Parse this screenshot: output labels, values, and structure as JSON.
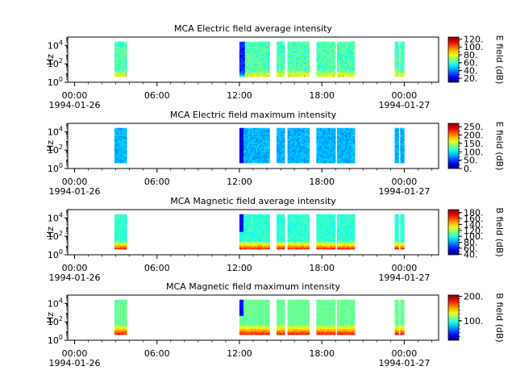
{
  "chart_data": [
    {
      "type": "heatmap",
      "title": "MCA  Electric field average intensity",
      "ylabel": "Hz",
      "colorbar_label": "E field (dB)",
      "colorbar_ticks": [
        "20.",
        "40.",
        "60.",
        "80.",
        "100.",
        "120."
      ],
      "colorbar_range": [
        10,
        125
      ],
      "colormap": "jet-like (blue-cyan-green-yellow-red)",
      "y_scale": "log",
      "y_ticks": [
        "10^0",
        "10^2",
        "10^4"
      ],
      "x_ticks": [
        {
          "time": "00:00",
          "date": "1994-01-26"
        },
        {
          "time": "06:00"
        },
        {
          "time": "12:00"
        },
        {
          "time": "18:00"
        },
        {
          "time": "00:00",
          "date": "1994-01-27"
        }
      ],
      "data_intervals_hours": [
        [
          2.9,
          3.8
        ],
        [
          12.0,
          14.2
        ],
        [
          14.7,
          15.3
        ],
        [
          15.5,
          17.1
        ],
        [
          17.6,
          19.0
        ],
        [
          19.1,
          20.4
        ],
        [
          23.3,
          23.6
        ],
        [
          23.7,
          24.0
        ]
      ],
      "frequency_range_log10": [
        0.6,
        4.4
      ]
    },
    {
      "type": "heatmap",
      "title": "MCA  Electric field maximum intensity",
      "ylabel": "Hz",
      "colorbar_label": "E field (dB)",
      "colorbar_ticks": [
        "0.",
        "50.",
        "100.",
        "150.",
        "200.",
        "250."
      ],
      "colorbar_range": [
        0,
        270
      ],
      "colormap": "jet-like (blue-cyan-green-yellow-red)",
      "y_scale": "log",
      "y_ticks": [
        "10^0",
        "10^2",
        "10^4"
      ],
      "x_ticks": [
        {
          "time": "00:00",
          "date": "1994-01-26"
        },
        {
          "time": "06:00"
        },
        {
          "time": "12:00"
        },
        {
          "time": "18:00"
        },
        {
          "time": "00:00",
          "date": "1994-01-27"
        }
      ],
      "data_intervals_hours": [
        [
          2.9,
          3.8
        ],
        [
          12.0,
          14.2
        ],
        [
          14.7,
          15.3
        ],
        [
          15.5,
          17.1
        ],
        [
          17.6,
          19.0
        ],
        [
          19.1,
          20.4
        ],
        [
          23.3,
          23.6
        ],
        [
          23.7,
          24.0
        ]
      ],
      "frequency_range_log10": [
        0.6,
        4.4
      ]
    },
    {
      "type": "heatmap",
      "title": "MCA  Magnetic field average intensity",
      "ylabel": "Hz",
      "colorbar_label": "B field (dB)",
      "colorbar_ticks": [
        "40.",
        "60.",
        "80.",
        "100.",
        "120.",
        "140.",
        "160.",
        "180."
      ],
      "colorbar_range": [
        38,
        190
      ],
      "colormap": "jet-like (blue-cyan-green-yellow-red)",
      "y_scale": "log",
      "y_ticks": [
        "10^0",
        "10^2",
        "10^4"
      ],
      "x_ticks": [
        {
          "time": "00:00",
          "date": "1994-01-26"
        },
        {
          "time": "06:00"
        },
        {
          "time": "12:00"
        },
        {
          "time": "18:00"
        },
        {
          "time": "00:00",
          "date": "1994-01-27"
        }
      ],
      "data_intervals_hours": [
        [
          2.9,
          3.8
        ],
        [
          12.0,
          14.2
        ],
        [
          14.7,
          15.3
        ],
        [
          15.5,
          17.1
        ],
        [
          17.6,
          19.0
        ],
        [
          19.1,
          20.4
        ],
        [
          23.3,
          23.6
        ],
        [
          23.7,
          24.0
        ]
      ],
      "frequency_range_log10": [
        0.6,
        4.4
      ]
    },
    {
      "type": "heatmap",
      "title": "MCA  Magnetic field maximum intensity",
      "ylabel": "Hz",
      "colorbar_label": "B field (dB)",
      "colorbar_ticks": [
        "100.",
        "200."
      ],
      "colorbar_range": [
        20,
        205
      ],
      "colormap": "jet-like (blue-cyan-green-yellow-red)",
      "y_scale": "log",
      "y_ticks": [
        "10^0",
        "10^2",
        "10^4"
      ],
      "x_ticks": [
        {
          "time": "00:00",
          "date": "1994-01-26"
        },
        {
          "time": "06:00"
        },
        {
          "time": "12:00"
        },
        {
          "time": "18:00"
        },
        {
          "time": "00:00",
          "date": "1994-01-27"
        }
      ],
      "data_intervals_hours": [
        [
          2.9,
          3.8
        ],
        [
          12.0,
          14.2
        ],
        [
          14.7,
          15.3
        ],
        [
          15.5,
          17.1
        ],
        [
          17.6,
          19.0
        ],
        [
          19.1,
          20.4
        ],
        [
          23.3,
          23.6
        ],
        [
          23.7,
          24.0
        ]
      ],
      "frequency_range_log10": [
        0.6,
        4.4
      ]
    }
  ]
}
